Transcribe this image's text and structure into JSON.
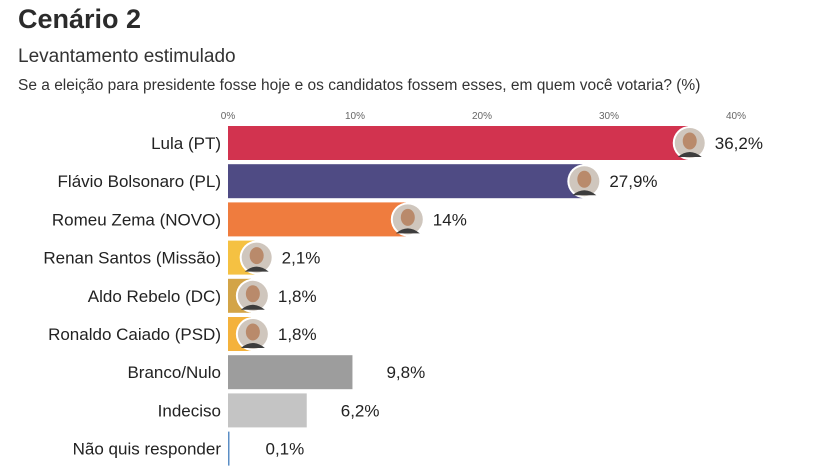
{
  "title": "Cenário 2",
  "subtitle": "Levantamento estimulado",
  "question": "Se a eleição para presidente fosse hoje e os candidatos fossem esses, em quem você votaria? (%)",
  "chart_data": {
    "type": "bar",
    "orientation": "horizontal",
    "xlim": [
      0,
      40
    ],
    "ticks": [
      "0%",
      "10%",
      "20%",
      "30%",
      "40%"
    ],
    "categories": [
      "Lula (PT)",
      "Flávio Bolsonaro (PL)",
      "Romeu Zema (NOVO)",
      "Renan Santos (Missão)",
      "Aldo Rebelo (DC)",
      "Ronaldo Caiado (PSD)",
      "Branco/Nulo",
      "Indeciso",
      "Não quis responder"
    ],
    "values": [
      36.2,
      27.9,
      14,
      2.1,
      1.8,
      1.8,
      9.8,
      6.2,
      0.1
    ],
    "value_labels": [
      "36,2%",
      "27,9%",
      "14%",
      "2,1%",
      "1,8%",
      "1,8%",
      "9,8%",
      "6,2%",
      "0,1%"
    ],
    "colors": [
      "#d2334f",
      "#4f4b84",
      "#ef7c3e",
      "#f5c142",
      "#d3a447",
      "#f4b23c",
      "#9d9d9d",
      "#c4c4c4",
      "#5b8ec5"
    ],
    "has_portrait": [
      true,
      true,
      true,
      true,
      true,
      true,
      false,
      false,
      false
    ]
  }
}
